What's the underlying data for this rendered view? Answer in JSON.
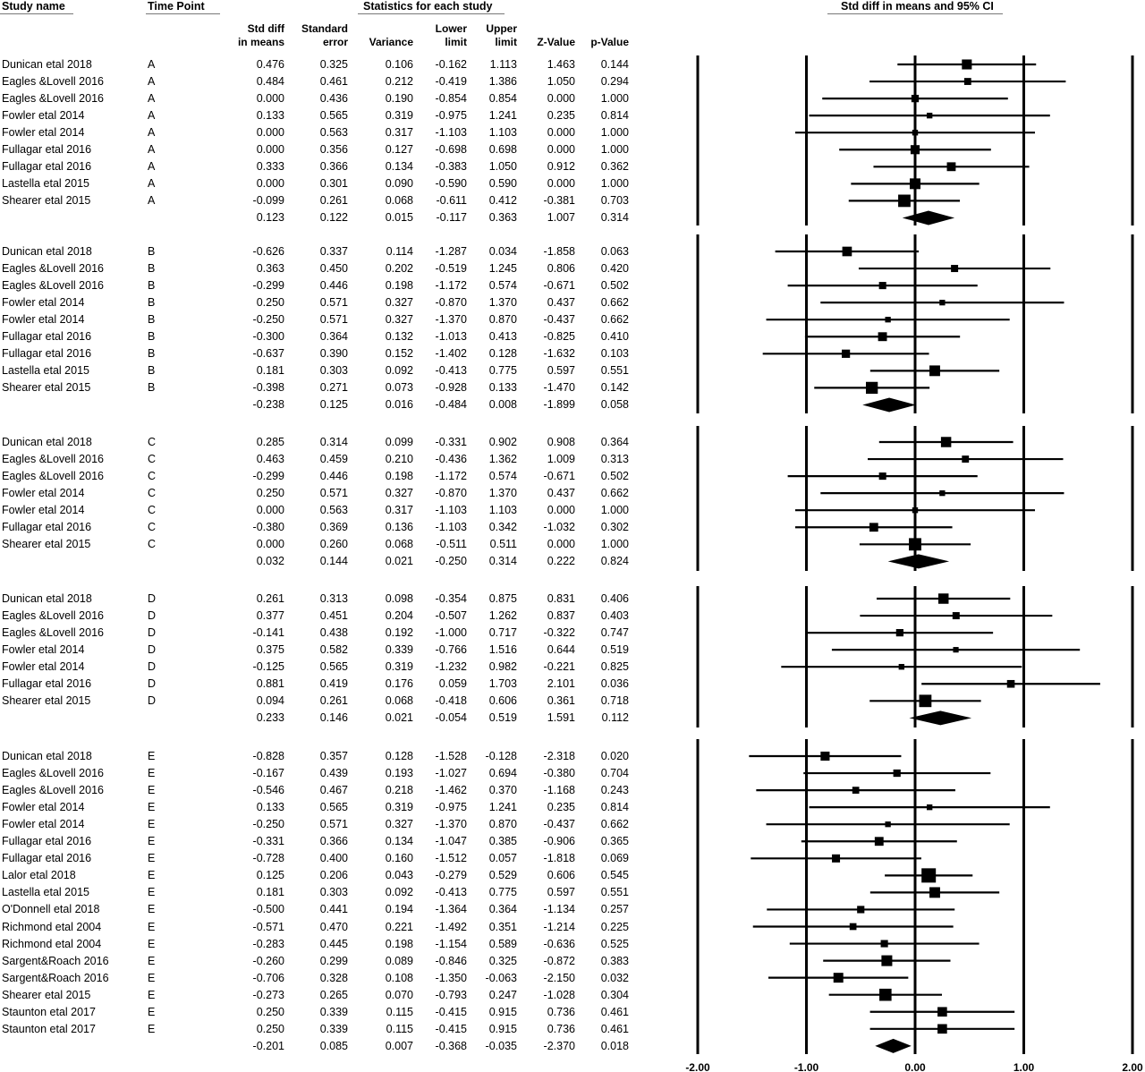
{
  "headers": {
    "study_name": "Study name",
    "time_point": "Time Point",
    "stats_group": "Statistics for each study",
    "forest_title": "Std diff in means and 95% CI",
    "columns": [
      [
        "Std diff",
        "in means"
      ],
      [
        "Standard",
        "error"
      ],
      [
        "",
        "Variance"
      ],
      [
        "Lower",
        "limit"
      ],
      [
        "Upper",
        "limit"
      ],
      [
        "",
        "Z-Value"
      ],
      [
        "",
        "p-Value"
      ]
    ]
  },
  "chart_data": {
    "type": "forest",
    "title": "Std diff in means and 95% CI",
    "xlim": [
      -2.0,
      2.0
    ],
    "x_ticks": [
      "-2.00",
      "-1.00",
      "0.00",
      "1.00",
      "2.00"
    ],
    "x_tick_values": [
      -2,
      -1,
      0,
      1,
      2
    ],
    "groups": [
      {
        "time_point": "A",
        "studies": [
          {
            "name": "Dunican etal 2018",
            "tp": "A",
            "vals": [
              "0.476",
              "0.325",
              "0.106",
              "-0.162",
              "1.113",
              "1.463",
              "0.144"
            ]
          },
          {
            "name": "Eagles &Lovell 2016",
            "tp": "A",
            "vals": [
              "0.484",
              "0.461",
              "0.212",
              "-0.419",
              "1.386",
              "1.050",
              "0.294"
            ]
          },
          {
            "name": "Eagles &Lovell 2016",
            "tp": "A",
            "vals": [
              "0.000",
              "0.436",
              "0.190",
              "-0.854",
              "0.854",
              "0.000",
              "1.000"
            ]
          },
          {
            "name": "Fowler etal 2014",
            "tp": "A",
            "vals": [
              "0.133",
              "0.565",
              "0.319",
              "-0.975",
              "1.241",
              "0.235",
              "0.814"
            ]
          },
          {
            "name": "Fowler etal 2014",
            "tp": "A",
            "vals": [
              "0.000",
              "0.563",
              "0.317",
              "-1.103",
              "1.103",
              "0.000",
              "1.000"
            ]
          },
          {
            "name": "Fullagar etal 2016",
            "tp": "A",
            "vals": [
              "0.000",
              "0.356",
              "0.127",
              "-0.698",
              "0.698",
              "0.000",
              "1.000"
            ]
          },
          {
            "name": "Fullagar etal 2016",
            "tp": "A",
            "vals": [
              "0.333",
              "0.366",
              "0.134",
              "-0.383",
              "1.050",
              "0.912",
              "0.362"
            ]
          },
          {
            "name": "Lastella etal 2015",
            "tp": "A",
            "vals": [
              "0.000",
              "0.301",
              "0.090",
              "-0.590",
              "0.590",
              "0.000",
              "1.000"
            ]
          },
          {
            "name": "Shearer etal 2015",
            "tp": "A",
            "vals": [
              "-0.099",
              "0.261",
              "0.068",
              "-0.611",
              "0.412",
              "-0.381",
              "0.703"
            ]
          }
        ],
        "summary": [
          "0.123",
          "0.122",
          "0.015",
          "-0.117",
          "0.363",
          "1.007",
          "0.314"
        ]
      },
      {
        "time_point": "B",
        "studies": [
          {
            "name": "Dunican etal 2018",
            "tp": "B",
            "vals": [
              "-0.626",
              "0.337",
              "0.114",
              "-1.287",
              "0.034",
              "-1.858",
              "0.063"
            ]
          },
          {
            "name": "Eagles &Lovell 2016",
            "tp": "B",
            "vals": [
              "0.363",
              "0.450",
              "0.202",
              "-0.519",
              "1.245",
              "0.806",
              "0.420"
            ]
          },
          {
            "name": "Eagles &Lovell 2016",
            "tp": "B",
            "vals": [
              "-0.299",
              "0.446",
              "0.198",
              "-1.172",
              "0.574",
              "-0.671",
              "0.502"
            ]
          },
          {
            "name": "Fowler etal 2014",
            "tp": "B",
            "vals": [
              "0.250",
              "0.571",
              "0.327",
              "-0.870",
              "1.370",
              "0.437",
              "0.662"
            ]
          },
          {
            "name": "Fowler etal 2014",
            "tp": "B",
            "vals": [
              "-0.250",
              "0.571",
              "0.327",
              "-1.370",
              "0.870",
              "-0.437",
              "0.662"
            ]
          },
          {
            "name": "Fullagar etal 2016",
            "tp": "B",
            "vals": [
              "-0.300",
              "0.364",
              "0.132",
              "-1.013",
              "0.413",
              "-0.825",
              "0.410"
            ]
          },
          {
            "name": "Fullagar etal 2016",
            "tp": "B",
            "vals": [
              "-0.637",
              "0.390",
              "0.152",
              "-1.402",
              "0.128",
              "-1.632",
              "0.103"
            ]
          },
          {
            "name": "Lastella etal 2015",
            "tp": "B",
            "vals": [
              "0.181",
              "0.303",
              "0.092",
              "-0.413",
              "0.775",
              "0.597",
              "0.551"
            ]
          },
          {
            "name": "Shearer etal 2015",
            "tp": "B",
            "vals": [
              "-0.398",
              "0.271",
              "0.073",
              "-0.928",
              "0.133",
              "-1.470",
              "0.142"
            ]
          }
        ],
        "summary": [
          "-0.238",
          "0.125",
          "0.016",
          "-0.484",
          "0.008",
          "-1.899",
          "0.058"
        ]
      },
      {
        "time_point": "C",
        "studies": [
          {
            "name": "Dunican etal 2018",
            "tp": "C",
            "vals": [
              "0.285",
              "0.314",
              "0.099",
              "-0.331",
              "0.902",
              "0.908",
              "0.364"
            ]
          },
          {
            "name": "Eagles &Lovell 2016",
            "tp": "C",
            "vals": [
              "0.463",
              "0.459",
              "0.210",
              "-0.436",
              "1.362",
              "1.009",
              "0.313"
            ]
          },
          {
            "name": "Eagles &Lovell 2016",
            "tp": "C",
            "vals": [
              "-0.299",
              "0.446",
              "0.198",
              "-1.172",
              "0.574",
              "-0.671",
              "0.502"
            ]
          },
          {
            "name": "Fowler etal 2014",
            "tp": "C",
            "vals": [
              "0.250",
              "0.571",
              "0.327",
              "-0.870",
              "1.370",
              "0.437",
              "0.662"
            ]
          },
          {
            "name": "Fowler etal 2014",
            "tp": "C",
            "vals": [
              "0.000",
              "0.563",
              "0.317",
              "-1.103",
              "1.103",
              "0.000",
              "1.000"
            ]
          },
          {
            "name": "Fullagar etal 2016",
            "tp": "C",
            "vals": [
              "-0.380",
              "0.369",
              "0.136",
              "-1.103",
              "0.342",
              "-1.032",
              "0.302"
            ]
          },
          {
            "name": "Shearer etal 2015",
            "tp": "C",
            "vals": [
              "0.000",
              "0.260",
              "0.068",
              "-0.511",
              "0.511",
              "0.000",
              "1.000"
            ]
          }
        ],
        "summary": [
          "0.032",
          "0.144",
          "0.021",
          "-0.250",
          "0.314",
          "0.222",
          "0.824"
        ]
      },
      {
        "time_point": "D",
        "studies": [
          {
            "name": "Dunican etal 2018",
            "tp": "D",
            "vals": [
              "0.261",
              "0.313",
              "0.098",
              "-0.354",
              "0.875",
              "0.831",
              "0.406"
            ]
          },
          {
            "name": "Eagles &Lovell 2016",
            "tp": "D",
            "vals": [
              "0.377",
              "0.451",
              "0.204",
              "-0.507",
              "1.262",
              "0.837",
              "0.403"
            ]
          },
          {
            "name": "Eagles &Lovell 2016",
            "tp": "D",
            "vals": [
              "-0.141",
              "0.438",
              "0.192",
              "-1.000",
              "0.717",
              "-0.322",
              "0.747"
            ]
          },
          {
            "name": "Fowler etal 2014",
            "tp": "D",
            "vals": [
              "0.375",
              "0.582",
              "0.339",
              "-0.766",
              "1.516",
              "0.644",
              "0.519"
            ]
          },
          {
            "name": "Fowler etal 2014",
            "tp": "D",
            "vals": [
              "-0.125",
              "0.565",
              "0.319",
              "-1.232",
              "0.982",
              "-0.221",
              "0.825"
            ]
          },
          {
            "name": "Fullagar etal 2016",
            "tp": "D",
            "vals": [
              "0.881",
              "0.419",
              "0.176",
              "0.059",
              "1.703",
              "2.101",
              "0.036"
            ]
          },
          {
            "name": "Shearer etal 2015",
            "tp": "D",
            "vals": [
              "0.094",
              "0.261",
              "0.068",
              "-0.418",
              "0.606",
              "0.361",
              "0.718"
            ]
          }
        ],
        "summary": [
          "0.233",
          "0.146",
          "0.021",
          "-0.054",
          "0.519",
          "1.591",
          "0.112"
        ]
      },
      {
        "time_point": "E",
        "studies": [
          {
            "name": "Dunican etal 2018",
            "tp": "E",
            "vals": [
              "-0.828",
              "0.357",
              "0.128",
              "-1.528",
              "-0.128",
              "-2.318",
              "0.020"
            ]
          },
          {
            "name": "Eagles &Lovell 2016",
            "tp": "E",
            "vals": [
              "-0.167",
              "0.439",
              "0.193",
              "-1.027",
              "0.694",
              "-0.380",
              "0.704"
            ]
          },
          {
            "name": "Eagles &Lovell 2016",
            "tp": "E",
            "vals": [
              "-0.546",
              "0.467",
              "0.218",
              "-1.462",
              "0.370",
              "-1.168",
              "0.243"
            ]
          },
          {
            "name": "Fowler etal 2014",
            "tp": "E",
            "vals": [
              "0.133",
              "0.565",
              "0.319",
              "-0.975",
              "1.241",
              "0.235",
              "0.814"
            ]
          },
          {
            "name": "Fowler etal 2014",
            "tp": "E",
            "vals": [
              "-0.250",
              "0.571",
              "0.327",
              "-1.370",
              "0.870",
              "-0.437",
              "0.662"
            ]
          },
          {
            "name": "Fullagar etal 2016",
            "tp": "E",
            "vals": [
              "-0.331",
              "0.366",
              "0.134",
              "-1.047",
              "0.385",
              "-0.906",
              "0.365"
            ]
          },
          {
            "name": "Fullagar etal 2016",
            "tp": "E",
            "vals": [
              "-0.728",
              "0.400",
              "0.160",
              "-1.512",
              "0.057",
              "-1.818",
              "0.069"
            ]
          },
          {
            "name": "Lalor etal 2018",
            "tp": "E",
            "vals": [
              "0.125",
              "0.206",
              "0.043",
              "-0.279",
              "0.529",
              "0.606",
              "0.545"
            ]
          },
          {
            "name": "Lastella etal 2015",
            "tp": "E",
            "vals": [
              "0.181",
              "0.303",
              "0.092",
              "-0.413",
              "0.775",
              "0.597",
              "0.551"
            ]
          },
          {
            "name": "O'Donnell etal 2018",
            "tp": "E",
            "vals": [
              "-0.500",
              "0.441",
              "0.194",
              "-1.364",
              "0.364",
              "-1.134",
              "0.257"
            ]
          },
          {
            "name": "Richmond etal 2004",
            "tp": "E",
            "vals": [
              "-0.571",
              "0.470",
              "0.221",
              "-1.492",
              "0.351",
              "-1.214",
              "0.225"
            ]
          },
          {
            "name": "Richmond etal 2004",
            "tp": "E",
            "vals": [
              "-0.283",
              "0.445",
              "0.198",
              "-1.154",
              "0.589",
              "-0.636",
              "0.525"
            ]
          },
          {
            "name": "Sargent&Roach 2016",
            "tp": "E",
            "vals": [
              "-0.260",
              "0.299",
              "0.089",
              "-0.846",
              "0.325",
              "-0.872",
              "0.383"
            ]
          },
          {
            "name": "Sargent&Roach 2016",
            "tp": "E",
            "vals": [
              "-0.706",
              "0.328",
              "0.108",
              "-1.350",
              "-0.063",
              "-2.150",
              "0.032"
            ]
          },
          {
            "name": "Shearer etal 2015",
            "tp": "E",
            "vals": [
              "-0.273",
              "0.265",
              "0.070",
              "-0.793",
              "0.247",
              "-1.028",
              "0.304"
            ]
          },
          {
            "name": "Staunton etal 2017",
            "tp": "E",
            "vals": [
              "0.250",
              "0.339",
              "0.115",
              "-0.415",
              "0.915",
              "0.736",
              "0.461"
            ]
          },
          {
            "name": "Staunton etal 2017",
            "tp": "E",
            "vals": [
              "0.250",
              "0.339",
              "0.115",
              "-0.415",
              "0.915",
              "0.736",
              "0.461"
            ]
          }
        ],
        "summary": [
          "-0.201",
          "0.085",
          "0.007",
          "-0.368",
          "-0.035",
          "-2.370",
          "0.018"
        ]
      }
    ]
  }
}
